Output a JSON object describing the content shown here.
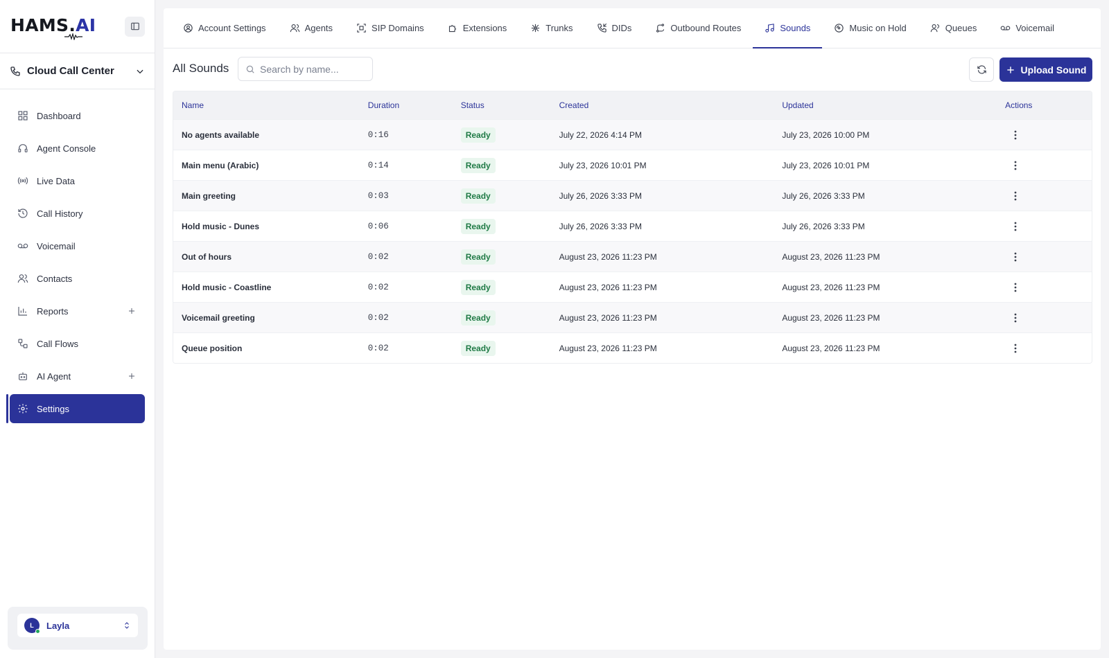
{
  "brand": {
    "name": "HAMS.",
    "suffix": "AI"
  },
  "org": {
    "name": "Cloud Call Center"
  },
  "sidebar": {
    "items": [
      {
        "label": "Dashboard",
        "icon": "grid-icon"
      },
      {
        "label": "Agent Console",
        "icon": "headset-icon"
      },
      {
        "label": "Live Data",
        "icon": "broadcast-icon"
      },
      {
        "label": "Call History",
        "icon": "history-icon"
      },
      {
        "label": "Voicemail",
        "icon": "voicemail-icon"
      },
      {
        "label": "Contacts",
        "icon": "users-icon"
      },
      {
        "label": "Reports",
        "icon": "bar-chart-icon",
        "expandable": true
      },
      {
        "label": "Call Flows",
        "icon": "workflow-icon"
      },
      {
        "label": "AI Agent",
        "icon": "bot-icon",
        "expandable": true
      },
      {
        "label": "Settings",
        "icon": "gear-icon",
        "active": true
      }
    ]
  },
  "user": {
    "initial": "L",
    "name": "Layla"
  },
  "tabs": [
    {
      "label": "Account Settings"
    },
    {
      "label": "Agents"
    },
    {
      "label": "SIP Domains"
    },
    {
      "label": "Extensions"
    },
    {
      "label": "Trunks"
    },
    {
      "label": "DIDs"
    },
    {
      "label": "Outbound Routes"
    },
    {
      "label": "Sounds",
      "active": true
    },
    {
      "label": "Music on Hold"
    },
    {
      "label": "Queues"
    },
    {
      "label": "Voicemail"
    }
  ],
  "main": {
    "title": "All Sounds",
    "search_placeholder": "Search by name...",
    "upload_label": "Upload Sound"
  },
  "table": {
    "columns": [
      "Name",
      "Duration",
      "Status",
      "Created",
      "Updated",
      "Actions"
    ],
    "rows": [
      {
        "name": "No agents available",
        "duration": "0:16",
        "status": "Ready",
        "created": "July 22, 2026 4:14 PM",
        "updated": "July 23, 2026 10:00 PM"
      },
      {
        "name": "Main menu (Arabic)",
        "duration": "0:14",
        "status": "Ready",
        "created": "July 23, 2026 10:01 PM",
        "updated": "July 23, 2026 10:01 PM"
      },
      {
        "name": "Main greeting",
        "duration": "0:03",
        "status": "Ready",
        "created": "July 26, 2026 3:33 PM",
        "updated": "July 26, 2026 3:33 PM"
      },
      {
        "name": "Hold music - Dunes",
        "duration": "0:06",
        "status": "Ready",
        "created": "July 26, 2026 3:33 PM",
        "updated": "July 26, 2026 3:33 PM"
      },
      {
        "name": "Out of hours",
        "duration": "0:02",
        "status": "Ready",
        "created": "August 23, 2026 11:23 PM",
        "updated": "August 23, 2026 11:23 PM"
      },
      {
        "name": "Hold music - Coastline",
        "duration": "0:02",
        "status": "Ready",
        "created": "August 23, 2026 11:23 PM",
        "updated": "August 23, 2026 11:23 PM"
      },
      {
        "name": "Voicemail greeting",
        "duration": "0:02",
        "status": "Ready",
        "created": "August 23, 2026 11:23 PM",
        "updated": "August 23, 2026 11:23 PM"
      },
      {
        "name": "Queue position",
        "duration": "0:02",
        "status": "Ready",
        "created": "August 23, 2026 11:23 PM",
        "updated": "August 23, 2026 11:23 PM"
      }
    ]
  },
  "colors": {
    "accent": "#2b3399",
    "ready_bg": "#e9f6ee",
    "ready_text": "#1f7a45"
  }
}
